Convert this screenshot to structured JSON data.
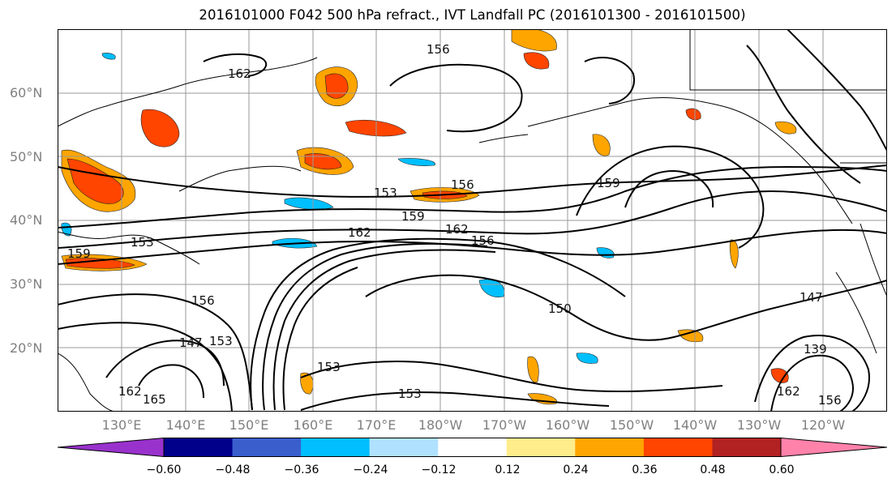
{
  "title": "2016101000 F042 500 hPa refract., IVT Landfall PC (2016101300 - 2016101500)",
  "lat_ticks": [
    "60°N",
    "50°N",
    "40°N",
    "30°N",
    "20°N"
  ],
  "lon_ticks": [
    "130°E",
    "140°E",
    "150°E",
    "160°E",
    "170°E",
    "180°W",
    "170°W",
    "160°W",
    "150°W",
    "140°W",
    "130°W",
    "120°W"
  ],
  "contour_labels": [
    "162",
    "156",
    "153",
    "159",
    "162",
    "156",
    "153",
    "159",
    "156",
    "147",
    "153",
    "165",
    "162",
    "150",
    "147",
    "139",
    "162",
    "156",
    "153",
    "159",
    "156",
    "153",
    "162"
  ],
  "colorbar": {
    "ticks": [
      "−0.60",
      "−0.48",
      "−0.36",
      "−0.24",
      "−0.12",
      "0.12",
      "0.24",
      "0.36",
      "0.48",
      "0.60"
    ],
    "colors": [
      "#9932CC",
      "#00008B",
      "#3A5FCD",
      "#00BFFF",
      "#B0E2FF",
      "#FFFFFF",
      "#FFEC8B",
      "#FFA500",
      "#FF4500",
      "#B22222",
      "#FF82AB"
    ]
  }
}
